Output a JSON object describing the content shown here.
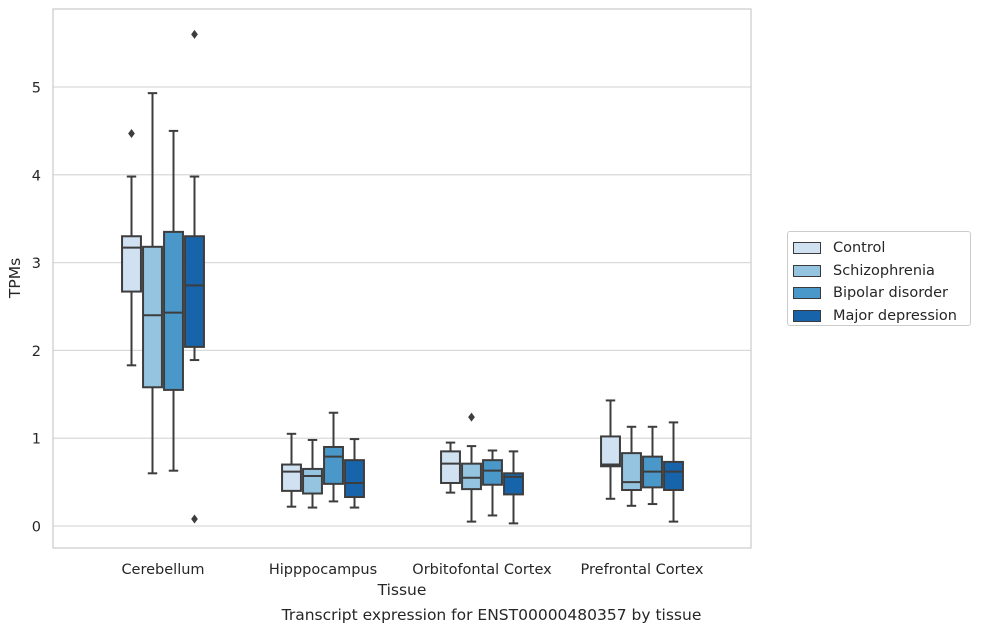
{
  "chart_data": {
    "type": "boxplot",
    "xlabel": "Tissue",
    "ylabel": "TPMs",
    "ylim": [
      -0.25,
      6.0
    ],
    "yticks": [
      0,
      1,
      2,
      3,
      4,
      5
    ],
    "grid": "horizontal",
    "legend_position": "right",
    "categories": [
      "Cerebellum",
      "Hipppocampus",
      "Orbitofontal Cortex",
      "Prefrontal Cortex"
    ],
    "series": [
      {
        "name": "Control",
        "color": "#d0e1f2",
        "boxes": [
          {
            "whislo": 1.83,
            "q1": 2.67,
            "med": 3.17,
            "q3": 3.3,
            "whishi": 3.98,
            "fliers": [
              4.47
            ]
          },
          {
            "whislo": 0.22,
            "q1": 0.4,
            "med": 0.62,
            "q3": 0.7,
            "whishi": 1.05,
            "fliers": []
          },
          {
            "whislo": 0.38,
            "q1": 0.49,
            "med": 0.71,
            "q3": 0.85,
            "whishi": 0.95,
            "fliers": []
          },
          {
            "whislo": 0.31,
            "q1": 0.68,
            "med": 0.7,
            "q3": 1.02,
            "whishi": 1.43,
            "fliers": []
          }
        ]
      },
      {
        "name": "Schizophrenia",
        "color": "#94c4df",
        "boxes": [
          {
            "whislo": 0.6,
            "q1": 1.58,
            "med": 2.4,
            "q3": 3.18,
            "whishi": 4.93,
            "fliers": []
          },
          {
            "whislo": 0.21,
            "q1": 0.37,
            "med": 0.57,
            "q3": 0.65,
            "whishi": 0.98,
            "fliers": []
          },
          {
            "whislo": 0.05,
            "q1": 0.42,
            "med": 0.55,
            "q3": 0.71,
            "whishi": 0.91,
            "fliers": []
          },
          {
            "whislo": 0.23,
            "q1": 0.41,
            "med": 0.5,
            "q3": 0.83,
            "whishi": 1.13,
            "fliers": []
          }
        ]
      },
      {
        "name": "Bipolar disorder",
        "color": "#4a98c9",
        "boxes": [
          {
            "whislo": 0.63,
            "q1": 1.55,
            "med": 2.43,
            "q3": 3.35,
            "whishi": 4.5,
            "fliers": []
          },
          {
            "whislo": 0.28,
            "q1": 0.48,
            "med": 0.79,
            "q3": 0.9,
            "whishi": 1.29,
            "fliers": []
          },
          {
            "whislo": 0.12,
            "q1": 0.47,
            "med": 0.63,
            "q3": 0.75,
            "whishi": 0.86,
            "fliers": []
          },
          {
            "whislo": 0.25,
            "q1": 0.44,
            "med": 0.62,
            "q3": 0.79,
            "whishi": 1.13,
            "fliers": []
          }
        ]
      },
      {
        "name": "Major depression",
        "color": "#1764ab",
        "boxes": [
          {
            "whislo": 1.89,
            "q1": 2.04,
            "med": 2.74,
            "q3": 3.3,
            "whishi": 3.98,
            "fliers": [
              5.6,
              0.08
            ]
          },
          {
            "whislo": 0.21,
            "q1": 0.33,
            "med": 0.49,
            "q3": 0.75,
            "whishi": 0.99,
            "fliers": []
          },
          {
            "whislo": 0.03,
            "q1": 0.36,
            "med": 0.56,
            "q3": 0.6,
            "whishi": 0.85,
            "fliers": []
          },
          {
            "whislo": 0.05,
            "q1": 0.41,
            "med": 0.62,
            "q3": 0.73,
            "whishi": 1.18,
            "fliers": []
          }
        ]
      }
    ],
    "extra_fliers": [
      {
        "category": "Orbitofontal Cortex",
        "series": "Schizophrenia",
        "value": 1.24
      }
    ]
  },
  "caption": "Transcript expression for ENST00000480357 by tissue"
}
